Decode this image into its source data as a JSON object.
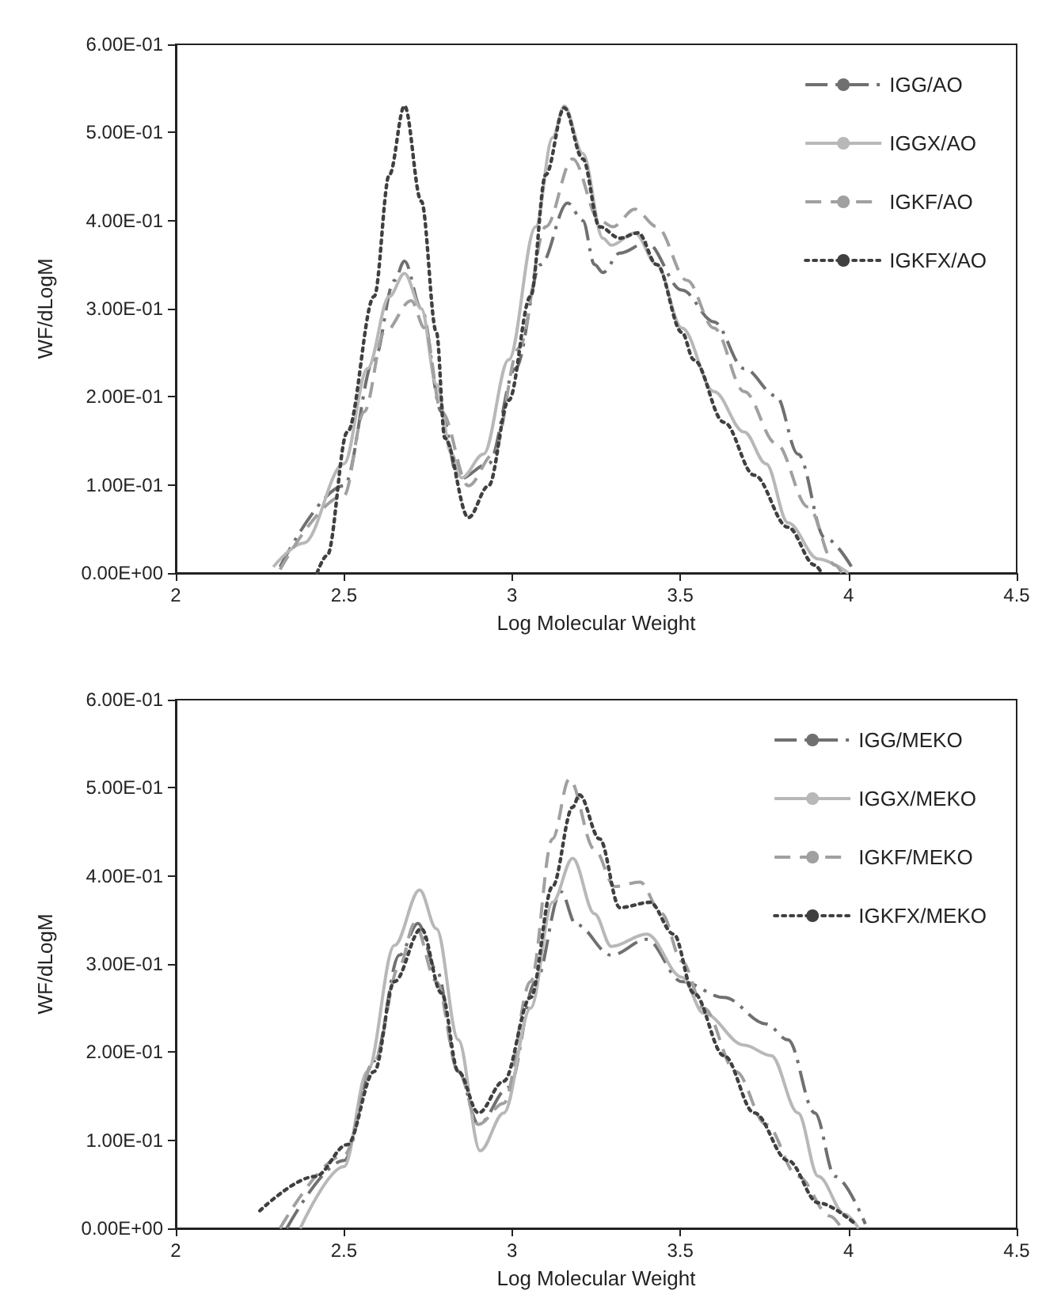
{
  "chart_data": [
    {
      "type": "line",
      "xlabel": "Log Molecular Weight",
      "ylabel": "WF/dLogM",
      "xlim": [
        2,
        4.5
      ],
      "xticks": [
        2,
        2.5,
        3,
        3.5,
        4,
        4.5
      ],
      "ylim": [
        0,
        0.6
      ],
      "yticks": [
        {
          "value": 0,
          "label": "0.00E+00"
        },
        {
          "value": 0.1,
          "label": "1.00E-01"
        },
        {
          "value": 0.2,
          "label": "2.00E-01"
        },
        {
          "value": 0.3,
          "label": "3.00E-01"
        },
        {
          "value": 0.4,
          "label": "4.00E-01"
        },
        {
          "value": 0.5,
          "label": "5.00E-01"
        },
        {
          "value": 0.6,
          "label": "6.00E-01"
        }
      ],
      "legend": "top right",
      "marker": "none",
      "series": [
        {
          "name": "IGG/AO",
          "color": "#707070",
          "line_style": "dashdot",
          "x": [
            2.31,
            2.5,
            2.59,
            2.65,
            2.68,
            2.73,
            2.79,
            2.84,
            2.93,
            3.01,
            3.085,
            3.165,
            3.21,
            3.245,
            3.27,
            3.32,
            3.4,
            3.505,
            3.6,
            3.69,
            3.785,
            3.85,
            3.93,
            4.02
          ],
          "values": [
            0.007,
            0.099,
            0.242,
            0.332,
            0.354,
            0.3,
            0.183,
            0.106,
            0.124,
            0.232,
            0.35,
            0.42,
            0.4,
            0.35,
            0.341,
            0.363,
            0.375,
            0.321,
            0.285,
            0.232,
            0.201,
            0.135,
            0.04,
            0
          ]
        },
        {
          "name": "IGGX/AO",
          "color": "#b8b8b8",
          "line_style": "solid",
          "x": [
            2.29,
            2.38,
            2.5,
            2.57,
            2.635,
            2.68,
            2.73,
            2.775,
            2.82,
            2.85,
            2.915,
            2.99,
            3.07,
            3.12,
            3.155,
            3.21,
            3.27,
            3.295,
            3.365,
            3.43,
            3.505,
            3.6,
            3.69,
            3.755,
            3.82,
            3.91,
            4.0
          ],
          "values": [
            0.007,
            0.034,
            0.124,
            0.232,
            0.314,
            0.34,
            0.3,
            0.214,
            0.135,
            0.108,
            0.135,
            0.242,
            0.393,
            0.494,
            0.53,
            0.476,
            0.38,
            0.372,
            0.386,
            0.35,
            0.278,
            0.206,
            0.16,
            0.124,
            0.057,
            0.016,
            0
          ]
        },
        {
          "name": "IGKF/AO",
          "color": "#a0a0a0",
          "line_style": "dashed",
          "x": [
            2.31,
            2.5,
            2.56,
            2.62,
            2.7,
            2.74,
            2.79,
            2.87,
            2.945,
            3.02,
            3.1,
            3.18,
            3.26,
            3.3,
            3.365,
            3.43,
            3.52,
            3.6,
            3.69,
            3.785,
            3.88,
            3.96,
            3.98
          ],
          "values": [
            0.004,
            0.088,
            0.183,
            0.273,
            0.309,
            0.278,
            0.183,
            0.099,
            0.135,
            0.255,
            0.393,
            0.47,
            0.4,
            0.393,
            0.413,
            0.393,
            0.332,
            0.278,
            0.206,
            0.147,
            0.075,
            0.009,
            0
          ]
        },
        {
          "name": "IGKFX/AO",
          "color": "#404040",
          "line_style": "dotted",
          "x": [
            2.42,
            2.45,
            2.51,
            2.59,
            2.635,
            2.68,
            2.73,
            2.775,
            2.8,
            2.87,
            2.93,
            2.99,
            3.055,
            3.1,
            3.155,
            3.21,
            3.26,
            3.32,
            3.375,
            3.43,
            3.505,
            3.54,
            3.63,
            3.72,
            3.82,
            3.9,
            3.92
          ],
          "values": [
            0,
            0.02,
            0.16,
            0.314,
            0.452,
            0.53,
            0.422,
            0.273,
            0.153,
            0.063,
            0.099,
            0.196,
            0.314,
            0.452,
            0.528,
            0.47,
            0.393,
            0.38,
            0.386,
            0.35,
            0.273,
            0.242,
            0.171,
            0.111,
            0.052,
            0.009,
            0
          ]
        }
      ]
    },
    {
      "type": "line",
      "xlabel": "Log Molecular Weight",
      "ylabel": "WF/dLogM",
      "xlim": [
        2,
        4.5
      ],
      "xticks": [
        2,
        2.5,
        3,
        3.5,
        4,
        4.5
      ],
      "ylim": [
        0,
        0.6
      ],
      "yticks": [
        {
          "value": 0,
          "label": "0.00E+00"
        },
        {
          "value": 0.1,
          "label": "1.00E-01"
        },
        {
          "value": 0.2,
          "label": "2.00E-01"
        },
        {
          "value": 0.3,
          "label": "3.00E-01"
        },
        {
          "value": 0.4,
          "label": "4.00E-01"
        },
        {
          "value": 0.5,
          "label": "5.00E-01"
        },
        {
          "value": 0.6,
          "label": "6.00E-01"
        }
      ],
      "legend": "top right",
      "marker": "none",
      "series": [
        {
          "name": "IGG/MEKO",
          "color": "#707070",
          "line_style": "dashdot",
          "x": [
            2.33,
            2.5,
            2.59,
            2.665,
            2.72,
            2.775,
            2.84,
            2.9,
            2.99,
            3.07,
            3.145,
            3.19,
            3.295,
            3.4,
            3.505,
            3.63,
            3.755,
            3.82,
            3.9,
            3.96,
            4.05
          ],
          "values": [
            0,
            0.077,
            0.19,
            0.31,
            0.346,
            0.293,
            0.178,
            0.118,
            0.16,
            0.28,
            0.382,
            0.345,
            0.31,
            0.328,
            0.28,
            0.262,
            0.232,
            0.214,
            0.131,
            0.059,
            0.005
          ]
        },
        {
          "name": "IGGX/MEKO",
          "color": "#b8b8b8",
          "line_style": "solid",
          "x": [
            2.37,
            2.5,
            2.57,
            2.65,
            2.725,
            2.775,
            2.84,
            2.905,
            2.975,
            3.055,
            3.12,
            3.18,
            3.245,
            3.295,
            3.4,
            3.505,
            3.57,
            3.69,
            3.77,
            3.85,
            3.91,
            3.99,
            4.03
          ],
          "values": [
            0,
            0.07,
            0.178,
            0.321,
            0.384,
            0.34,
            0.214,
            0.088,
            0.131,
            0.25,
            0.37,
            0.42,
            0.357,
            0.32,
            0.334,
            0.285,
            0.244,
            0.208,
            0.196,
            0.131,
            0.059,
            0.016,
            0
          ]
        },
        {
          "name": "IGKF/MEKO",
          "color": "#a0a0a0",
          "line_style": "dashed",
          "x": [
            2.31,
            2.5,
            2.59,
            2.665,
            2.71,
            2.775,
            2.84,
            2.9,
            2.975,
            3.055,
            3.12,
            3.17,
            3.245,
            3.305,
            3.38,
            3.445,
            3.505,
            3.57,
            3.665,
            3.755,
            3.85,
            3.945,
            3.98
          ],
          "values": [
            0,
            0.083,
            0.19,
            0.298,
            0.346,
            0.28,
            0.178,
            0.118,
            0.142,
            0.28,
            0.442,
            0.51,
            0.43,
            0.388,
            0.393,
            0.357,
            0.303,
            0.25,
            0.178,
            0.118,
            0.059,
            0.014,
            0
          ]
        },
        {
          "name": "IGKFX/MEKO",
          "color": "#404040",
          "line_style": "dotted",
          "x": [
            2.25,
            2.415,
            2.51,
            2.59,
            2.65,
            2.73,
            2.79,
            2.84,
            2.9,
            2.975,
            3.055,
            3.12,
            3.18,
            3.2,
            3.26,
            3.32,
            3.41,
            3.48,
            3.54,
            3.63,
            3.72,
            3.82,
            3.91,
            4.02
          ],
          "values": [
            0.02,
            0.059,
            0.095,
            0.178,
            0.28,
            0.34,
            0.267,
            0.178,
            0.131,
            0.167,
            0.262,
            0.388,
            0.478,
            0.492,
            0.442,
            0.364,
            0.37,
            0.334,
            0.267,
            0.196,
            0.131,
            0.077,
            0.029,
            0.005
          ]
        }
      ]
    }
  ]
}
